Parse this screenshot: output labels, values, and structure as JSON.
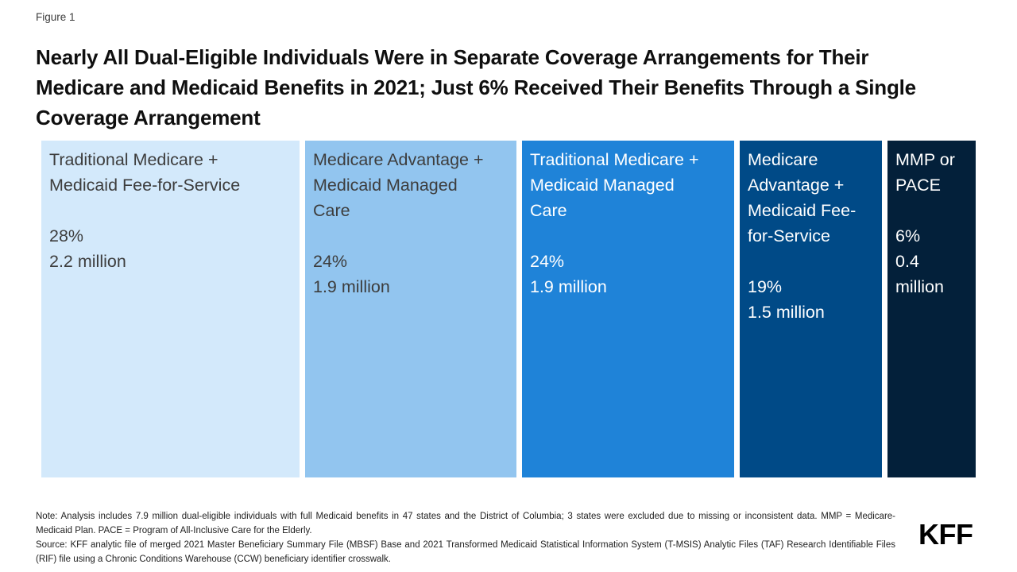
{
  "figure": {
    "label": "Figure 1"
  },
  "title": "Nearly All Dual-Eligible Individuals Were in Separate Coverage Arrangements for Their Medicare and Medicaid Benefits in 2021; Just 6% Received Their Benefits Through a Single Coverage Arrangement",
  "chart_data": {
    "type": "bar",
    "subtype": "proportional-segmented-bar",
    "title": "Coverage arrangements of dual-eligible individuals, 2021",
    "unit": "share of 7.9 million dual-eligible individuals",
    "legend_position": "none",
    "grid": false,
    "segments": [
      {
        "label": "Traditional Medicare + Medicaid Fee-for-Service",
        "percent_label": "28%",
        "count_label": "2.2 million",
        "value_percent": 28,
        "value_millions": 2.2,
        "color": "#D3E9FB",
        "text_color": "#3D3D3D"
      },
      {
        "label": "Medicare Advantage + Medicaid Managed Care",
        "percent_label": "24%",
        "count_label": "1.9 million",
        "value_percent": 24,
        "value_millions": 1.9,
        "color": "#92C5EF",
        "text_color": "#3D3D3D"
      },
      {
        "label": "Traditional Medicare + Medicaid Managed Care",
        "percent_label": "24%",
        "count_label": "1.9 million",
        "value_percent": 24,
        "value_millions": 1.9,
        "color": "#1F83D8",
        "text_color": "#FFFFFF"
      },
      {
        "label": "Medicare Advantage + Medicaid Fee-for-Service",
        "percent_label": "19%",
        "count_label": "1.5 million",
        "value_percent": 19,
        "value_millions": 1.5,
        "color": "#004A87",
        "text_color": "#FFFFFF"
      },
      {
        "label": "MMP or PACE",
        "percent_label": "6%",
        "count_label": "0.4 million",
        "value_percent": 6,
        "value_millions": 0.4,
        "color": "#03203A",
        "text_color": "#FFFFFF"
      }
    ]
  },
  "footer": {
    "note": "Note: Analysis includes 7.9 million dual-eligible individuals with full Medicaid benefits in 47 states and the District of Columbia; 3 states were excluded due to missing or inconsistent data. MMP = Medicare-Medicaid Plan. PACE = Program of All-Inclusive Care for the Elderly.",
    "source": "Source: KFF analytic file of merged 2021 Master Beneficiary Summary File (MBSF) Base and 2021 Transformed Medicaid Statistical Information System (T-MSIS) Analytic Files (TAF) Research Identifiable Files (RIF) file using a Chronic Conditions Warehouse (CCW) beneficiary identifier crosswalk.",
    "logo": "KFF"
  }
}
